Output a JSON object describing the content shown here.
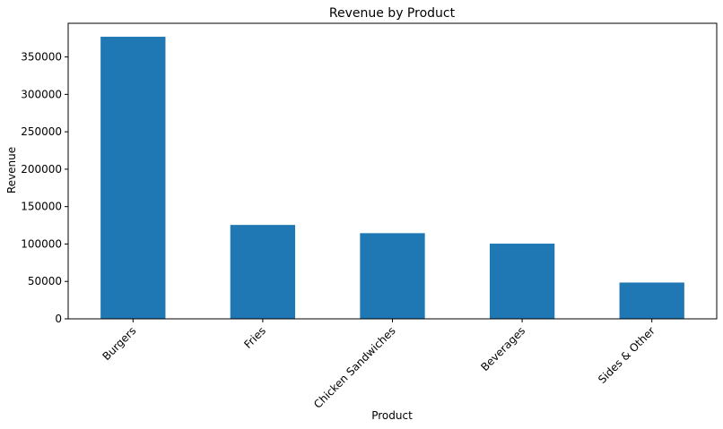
{
  "chart_data": {
    "type": "bar",
    "title": "Revenue by Product",
    "xlabel": "Product",
    "ylabel": "Revenue",
    "categories": [
      "Burgers",
      "Fries",
      "Chicken Sandwiches",
      "Beverages",
      "Sides & Other"
    ],
    "values": [
      377000,
      125500,
      114500,
      100500,
      48500
    ],
    "ylim": [
      0,
      395000
    ],
    "yticks": [
      0,
      50000,
      100000,
      150000,
      200000,
      250000,
      300000,
      350000
    ],
    "ytick_labels": [
      "0",
      "50000",
      "100000",
      "150000",
      "200000",
      "250000",
      "300000",
      "350000"
    ],
    "bar_color": "#1f77b4",
    "grid": false,
    "legend": "none"
  }
}
